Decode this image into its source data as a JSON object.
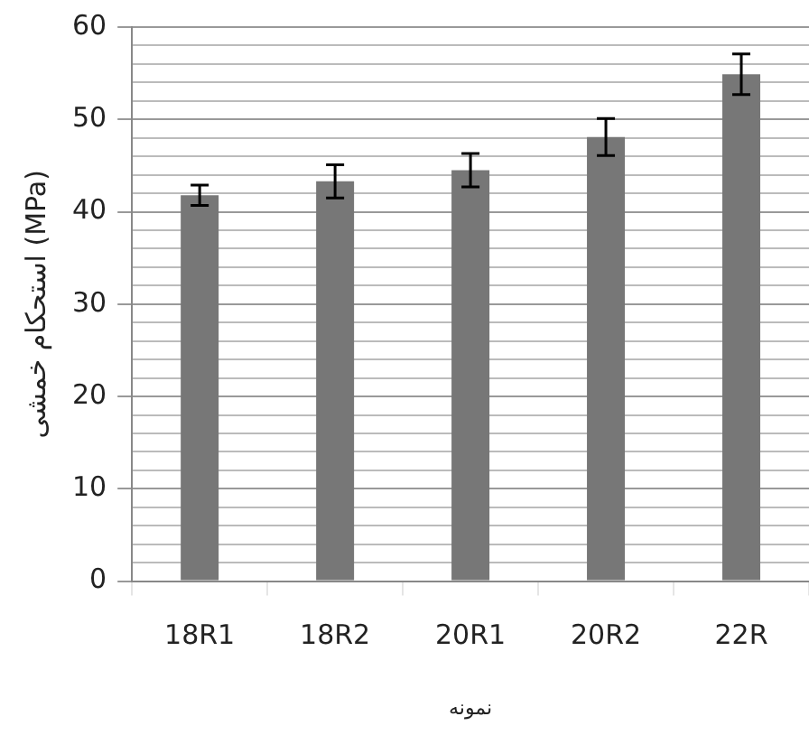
{
  "chart_data": {
    "type": "bar",
    "ylabel": "استحکام خمشی (MPa)",
    "xlabel": "نمونه",
    "categories": [
      "18R1",
      "18R2",
      "20R1",
      "20R2",
      "22R"
    ],
    "values": [
      41.8,
      43.3,
      44.5,
      48.1,
      54.9
    ],
    "errors": [
      1.1,
      1.8,
      1.8,
      2,
      2.2
    ],
    "color": "#777777",
    "ylim": [
      0,
      60
    ],
    "yticks": [
      0,
      {
        "value": 2,
        "label": null
      },
      {
        "value": 4,
        "label": null
      },
      {
        "value": 6,
        "label": null
      },
      {
        "value": 8,
        "label": null
      },
      10,
      {
        "value": 12,
        "label": null
      },
      {
        "value": 14,
        "label": null
      },
      {
        "value": 16,
        "label": null
      },
      {
        "value": 18,
        "label": null
      },
      20,
      {
        "value": 22,
        "label": null
      },
      {
        "value": 24,
        "label": null
      },
      {
        "value": 26,
        "label": null
      },
      {
        "value": 28,
        "label": null
      },
      30,
      {
        "value": 32,
        "label": null
      },
      {
        "value": 34,
        "label": null
      },
      {
        "value": 36,
        "label": null
      },
      {
        "value": 38,
        "label": null
      },
      40,
      {
        "value": 42,
        "label": null
      },
      {
        "value": 44,
        "label": null
      },
      {
        "value": 46,
        "label": null
      },
      {
        "value": 48,
        "label": null
      },
      50,
      {
        "value": 52,
        "label": null
      },
      {
        "value": 54,
        "label": null
      },
      {
        "value": 56,
        "label": null
      },
      {
        "value": 58,
        "label": null
      },
      60
    ],
    "grid": true,
    "legend": false
  }
}
